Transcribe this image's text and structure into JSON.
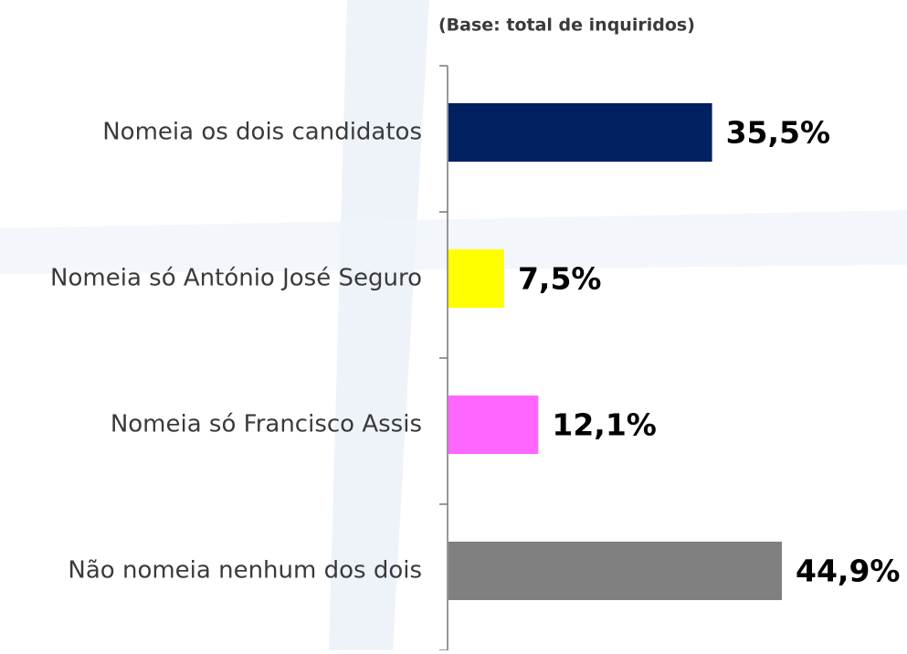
{
  "chart_data": {
    "type": "bar",
    "orientation": "horizontal",
    "subtitle": "(Base: total de inquiridos)",
    "categories": [
      "Nomeia os dois candidatos",
      "Nomeia só António José Seguro",
      "Nomeia só Francisco Assis",
      "Não nomeia nenhum dos dois"
    ],
    "values": [
      35.5,
      7.5,
      12.1,
      44.9
    ],
    "value_labels": [
      "35,5%",
      "7,5%",
      "12,1%",
      "44,9%"
    ],
    "colors": [
      "#002060",
      "#ffff00",
      "#ff66ff",
      "#808080"
    ]
  }
}
